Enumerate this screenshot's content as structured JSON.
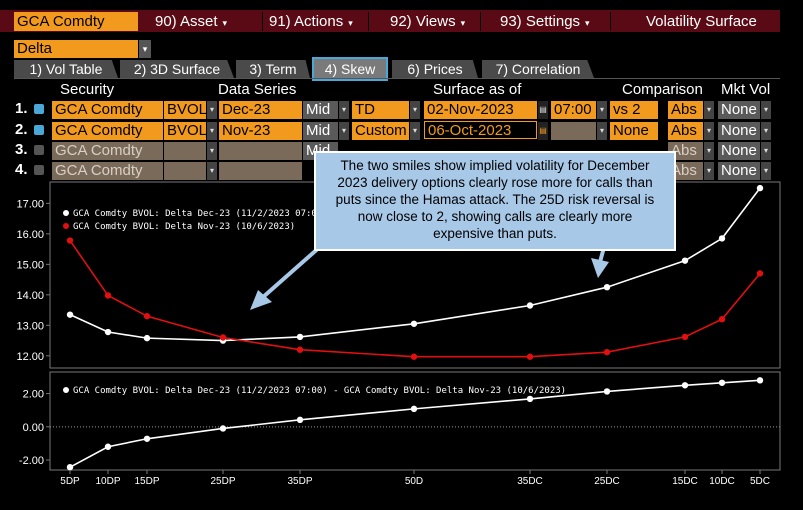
{
  "topbar": {
    "ticker": "GCA Comdty",
    "menus": [
      {
        "label": "90) Asset",
        "caret": "▾"
      },
      {
        "label": "91) Actions",
        "caret": "▾"
      },
      {
        "label": "92) Views",
        "caret": "▾"
      },
      {
        "label": "93) Settings",
        "caret": "▾"
      },
      {
        "label": "Volatility Surface",
        "caret": ""
      }
    ]
  },
  "selector": {
    "value": "Delta",
    "caret": "▾"
  },
  "tabs": [
    {
      "label": "1) Vol Table"
    },
    {
      "label": "2) 3D Surface"
    },
    {
      "label": "3) Term"
    },
    {
      "label": "4) Skew"
    },
    {
      "label": "6) Prices"
    },
    {
      "label": "7) Correlation"
    }
  ],
  "active_tab": "4) Skew",
  "headers": {
    "security": "Security",
    "data_series": "Data Series",
    "surface_as_of": "Surface as of",
    "comparison": "Comparison",
    "mkt_vol": "Mkt Vol"
  },
  "rows": [
    {
      "num": "1.",
      "checked": true,
      "security": "GCA Comdty",
      "source": "BVOL",
      "contract": "Dec-23",
      "side": "Mid",
      "mode": "TD",
      "date": "02-Nov-2023",
      "time": "07:00",
      "comparison": "vs 2",
      "abs": "Abs",
      "mkt": "None"
    },
    {
      "num": "2.",
      "checked": true,
      "security": "GCA Comdty",
      "source": "BVOL",
      "contract": "Nov-23",
      "side": "Mid",
      "mode": "Custom",
      "date": "06-Oct-2023",
      "time": "",
      "comparison": "None",
      "abs": "Abs",
      "mkt": "None"
    },
    {
      "num": "3.",
      "checked": false,
      "security": "GCA Comdty",
      "source": "",
      "contract": "",
      "side": "Mid",
      "mode": "",
      "date": "",
      "time": "",
      "comparison": "",
      "abs": "Abs",
      "mkt": "None"
    },
    {
      "num": "4.",
      "checked": false,
      "security": "GCA Comdty",
      "source": "",
      "contract": "",
      "side": "",
      "mode": "",
      "date": "",
      "time": "",
      "comparison": "",
      "abs": "Abs",
      "mkt": "None"
    }
  ],
  "callout": {
    "text": "The two smiles show implied volatility for December 2023 delivery options clearly rose more for calls than puts since the Hamas attack. The 25D risk reversal is now close to 2, showing calls are clearly more expensive than puts."
  },
  "colors": {
    "accent": "#f29a1e",
    "topbar": "#5a0a14",
    "series_dec": "#ffffff",
    "series_nov": "#e01010",
    "callout": "#a8c8e8"
  },
  "chart_data": [
    {
      "type": "line",
      "categories": [
        "5DP",
        "10DP",
        "15DP",
        "25DP",
        "35DP",
        "50D",
        "35DC",
        "25DC",
        "15DC",
        "10DC",
        "5DC"
      ],
      "series": [
        {
          "name": "GCA Comdty BVOL: Delta Dec-23 (11/2/2023 07:00)",
          "values": [
            13.35,
            12.78,
            12.58,
            12.5,
            12.62,
            13.05,
            13.65,
            14.25,
            15.12,
            15.85,
            17.5
          ]
        },
        {
          "name": "GCA Comdty BVOL: Delta Nov-23 (10/6/2023)",
          "values": [
            15.78,
            13.98,
            13.3,
            12.6,
            12.2,
            11.97,
            11.97,
            12.12,
            12.62,
            13.2,
            14.7
          ]
        }
      ],
      "yticks": [
        "12.00",
        "13.00",
        "14.00",
        "15.00",
        "16.00",
        "17.00"
      ],
      "ylim": [
        11.6,
        17.7
      ]
    },
    {
      "type": "line",
      "categories": [
        "5DP",
        "10DP",
        "15DP",
        "25DP",
        "35DP",
        "50D",
        "35DC",
        "25DC",
        "15DC",
        "10DC",
        "5DC"
      ],
      "series": [
        {
          "name": "GCA Comdty BVOL: Delta Dec-23 (11/2/2023 07:00) - GCA Comdty BVOL: Delta Nov-23 (10/6/2023)",
          "values": [
            -2.43,
            -1.2,
            -0.72,
            -0.1,
            0.42,
            1.08,
            1.68,
            2.13,
            2.5,
            2.65,
            2.8
          ]
        }
      ],
      "yticks": [
        "-2.00",
        "0.00",
        "2.00"
      ],
      "ylim": [
        -2.6,
        3.3
      ]
    }
  ]
}
